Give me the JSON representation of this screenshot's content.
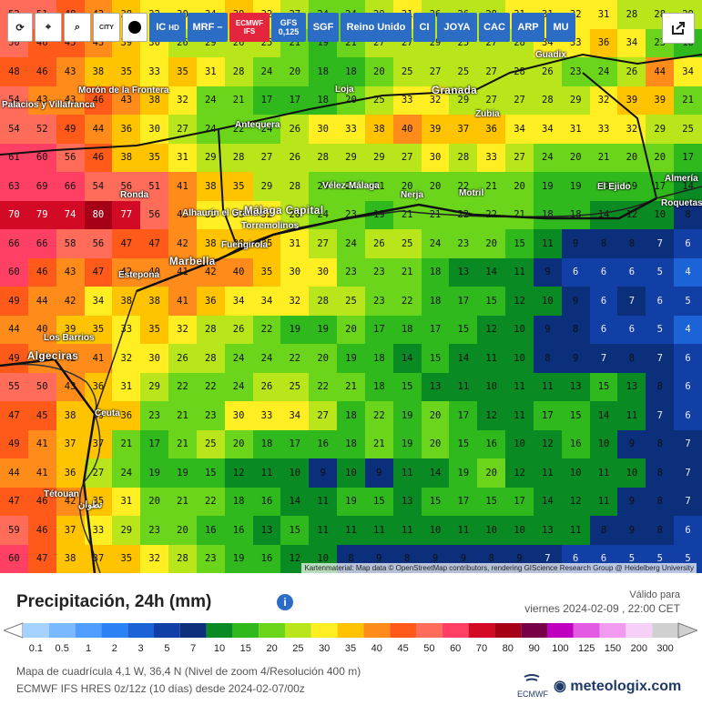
{
  "toolbar": {
    "buttons": [
      {
        "label": "",
        "icon": "refresh-icon"
      },
      {
        "label": "",
        "icon": "location-pin-icon"
      },
      {
        "label": "",
        "icon": "zoom-icon"
      },
      {
        "label": "CITY",
        "icon": "city-label-icon"
      },
      {
        "label": "",
        "icon": "black-dot-icon"
      },
      {
        "label": "IC",
        "sub": "HD"
      },
      {
        "label": "MRF",
        "sub": "–"
      },
      {
        "label": "ECMWF IFS",
        "sub": ""
      },
      {
        "label": "GFS",
        "sub": "0,125"
      },
      {
        "label": "SGF",
        "sub": ""
      },
      {
        "label": "Reino Unido",
        "sub": ""
      },
      {
        "label": "CI",
        "sub": ""
      },
      {
        "label": "JOYA",
        "sub": ""
      },
      {
        "label": "CAC",
        "sub": ""
      },
      {
        "label": "ARP",
        "sub": ""
      },
      {
        "label": "MU",
        "sub": ""
      }
    ],
    "export_icon": "share-export-icon"
  },
  "map": {
    "grid": [
      [
        52,
        51,
        48,
        43,
        38,
        32,
        30,
        34,
        39,
        32,
        27,
        24,
        24,
        29,
        31,
        26,
        26,
        28,
        31,
        31,
        32,
        31,
        28,
        28,
        29
      ],
      [
        50,
        46,
        45,
        43,
        39,
        30,
        26,
        29,
        26,
        25,
        21,
        19,
        21,
        27,
        27,
        29,
        25,
        27,
        28,
        34,
        33,
        36,
        34,
        23,
        18
      ],
      [
        48,
        46,
        43,
        38,
        35,
        33,
        35,
        31,
        28,
        24,
        20,
        18,
        18,
        20,
        25,
        27,
        25,
        27,
        28,
        26,
        23,
        24,
        26,
        44,
        34
      ],
      [
        54,
        43,
        43,
        46,
        43,
        38,
        32,
        24,
        21,
        17,
        17,
        18,
        20,
        25,
        33,
        32,
        29,
        27,
        27,
        28,
        29,
        32,
        39,
        39,
        21
      ],
      [
        54,
        52,
        49,
        44,
        36,
        30,
        27,
        24,
        22,
        24,
        26,
        30,
        33,
        38,
        40,
        39,
        37,
        36,
        34,
        34,
        31,
        33,
        32,
        29,
        25
      ],
      [
        61,
        60,
        56,
        46,
        38,
        35,
        31,
        29,
        28,
        27,
        26,
        28,
        29,
        29,
        27,
        30,
        28,
        33,
        27,
        24,
        20,
        21,
        20,
        20,
        17
      ],
      [
        63,
        69,
        66,
        54,
        56,
        51,
        41,
        38,
        35,
        29,
        28,
        24,
        22,
        21,
        20,
        20,
        22,
        21,
        20,
        19,
        19,
        18,
        19,
        17,
        14
      ],
      [
        70,
        79,
        74,
        80,
        77,
        56,
        43,
        33,
        33,
        32,
        28,
        24,
        23,
        19,
        21,
        21,
        22,
        22,
        21,
        18,
        18,
        14,
        12,
        10,
        8
      ],
      [
        66,
        66,
        58,
        56,
        47,
        47,
        42,
        38,
        38,
        35,
        31,
        27,
        24,
        26,
        25,
        24,
        23,
        20,
        15,
        11,
        9,
        8,
        8,
        7,
        6
      ],
      [
        60,
        46,
        43,
        47,
        42,
        40,
        41,
        42,
        40,
        35,
        30,
        30,
        23,
        23,
        21,
        18,
        13,
        14,
        11,
        9,
        6,
        6,
        6,
        5,
        4
      ],
      [
        49,
        44,
        42,
        34,
        38,
        38,
        41,
        36,
        34,
        34,
        32,
        28,
        25,
        23,
        22,
        18,
        17,
        15,
        12,
        10,
        9,
        6,
        7,
        6,
        5
      ],
      [
        44,
        40,
        39,
        35,
        33,
        35,
        32,
        28,
        26,
        22,
        19,
        19,
        20,
        17,
        18,
        17,
        15,
        12,
        10,
        9,
        8,
        6,
        6,
        5,
        4
      ],
      [
        49,
        43,
        42,
        41,
        32,
        30,
        26,
        28,
        24,
        24,
        22,
        20,
        19,
        18,
        14,
        15,
        14,
        11,
        10,
        8,
        9,
        7,
        8,
        7,
        6
      ],
      [
        55,
        50,
        43,
        36,
        31,
        29,
        22,
        22,
        24,
        26,
        25,
        22,
        21,
        18,
        15,
        13,
        11,
        10,
        11,
        11,
        13,
        15,
        13,
        8,
        6
      ],
      [
        47,
        45,
        38,
        39,
        36,
        23,
        21,
        23,
        30,
        33,
        34,
        27,
        18,
        22,
        19,
        20,
        17,
        12,
        11,
        17,
        15,
        14,
        11,
        7,
        6
      ],
      [
        49,
        41,
        37,
        37,
        21,
        17,
        21,
        25,
        20,
        18,
        17,
        16,
        18,
        21,
        19,
        20,
        15,
        16,
        10,
        12,
        16,
        10,
        9,
        8,
        7
      ],
      [
        44,
        41,
        36,
        27,
        24,
        19,
        19,
        15,
        12,
        11,
        10,
        9,
        10,
        9,
        11,
        14,
        19,
        20,
        12,
        11,
        10,
        11,
        10,
        8,
        7
      ],
      [
        47,
        46,
        42,
        35,
        31,
        20,
        21,
        22,
        18,
        16,
        14,
        11,
        19,
        15,
        13,
        15,
        17,
        15,
        17,
        14,
        12,
        11,
        9,
        8,
        7
      ],
      [
        59,
        46,
        37,
        33,
        29,
        23,
        20,
        16,
        16,
        13,
        15,
        11,
        11,
        11,
        11,
        10,
        11,
        10,
        10,
        13,
        11,
        8,
        9,
        8,
        6
      ],
      [
        60,
        47,
        38,
        37,
        35,
        32,
        28,
        23,
        19,
        16,
        12,
        10,
        8,
        9,
        8,
        9,
        9,
        8,
        9,
        7,
        6,
        6,
        5,
        5,
        5
      ]
    ],
    "towns": [
      {
        "name": "Morón de la Frontera",
        "line2": ""
      },
      {
        "name": "Palacios y Villafranca",
        "line2": ""
      },
      {
        "name": "Antequera",
        "line2": ""
      },
      {
        "name": "Loja",
        "line2": ""
      },
      {
        "name": "Granada",
        "line2": ""
      },
      {
        "name": "Zubia",
        "line2": ""
      },
      {
        "name": "Guadix",
        "line2": ""
      },
      {
        "name": "Ronda",
        "line2": ""
      },
      {
        "name": "Vélez-Málaga",
        "line2": ""
      },
      {
        "name": "Nerja",
        "line2": ""
      },
      {
        "name": "Motril",
        "line2": ""
      },
      {
        "name": "El Ejido",
        "line2": ""
      },
      {
        "name": "Almería",
        "line2": ""
      },
      {
        "name": "Roquetas de Mar",
        "line2": ""
      },
      {
        "name": "Alhaurín el Grande",
        "line2": ""
      },
      {
        "name": "Málaga Capital",
        "line2": ""
      },
      {
        "name": "Torremolinos",
        "line2": ""
      },
      {
        "name": "Fuengirola",
        "line2": ""
      },
      {
        "name": "Marbella",
        "line2": ""
      },
      {
        "name": "Estepona",
        "line2": ""
      },
      {
        "name": "Los Barrios",
        "line2": ""
      },
      {
        "name": "Algeciras",
        "line2": ""
      },
      {
        "name": "Ceuta",
        "line2": ""
      },
      {
        "name": "Tétouan",
        "line2": "تطوان"
      }
    ],
    "attribution": "Kartenmaterial: Map data © OpenStreetMap contributors, rendering GIScience Research Group @ Heidelberg University"
  },
  "legend": {
    "title": "Precipitación, 24h (mm)",
    "info_icon": "info-icon",
    "valid_label": "Válido para",
    "valid_time": "viernes 2024-02-09 , 22:00 CET",
    "scale_values": [
      "0.1",
      "0.5",
      "1",
      "2",
      "3",
      "5",
      "7",
      "10",
      "15",
      "20",
      "25",
      "30",
      "35",
      "40",
      "45",
      "50",
      "60",
      "70",
      "80",
      "90",
      "100",
      "125",
      "150",
      "200",
      "300"
    ],
    "scale_colors": [
      "#a6d2ff",
      "#7ab8ff",
      "#4f9dff",
      "#2a82f5",
      "#1d63d8",
      "#123fa5",
      "#0b2f7a",
      "#0a8a22",
      "#2fb91c",
      "#6bd51b",
      "#b9e61b",
      "#ffee22",
      "#ffc300",
      "#ff8b1a",
      "#ff5a1a",
      "#ff6c5a",
      "#ff3f64",
      "#d20a26",
      "#a50016",
      "#780046",
      "#c000c0",
      "#e25be2",
      "#f09af0",
      "#f7d0f7",
      "#d0d0d0"
    ],
    "meta_line1": "Mapa de cuadrícula 4,1 W, 36,4 N  (Nivel de zoom 4/Resolución 400 m)",
    "meta_line2": "ECMWF IFS HRES 0z/12z  (10 días)  desde 2024-02-07/00z",
    "ecmwf_logo": "ECMWF",
    "brand": "meteologix.com"
  }
}
